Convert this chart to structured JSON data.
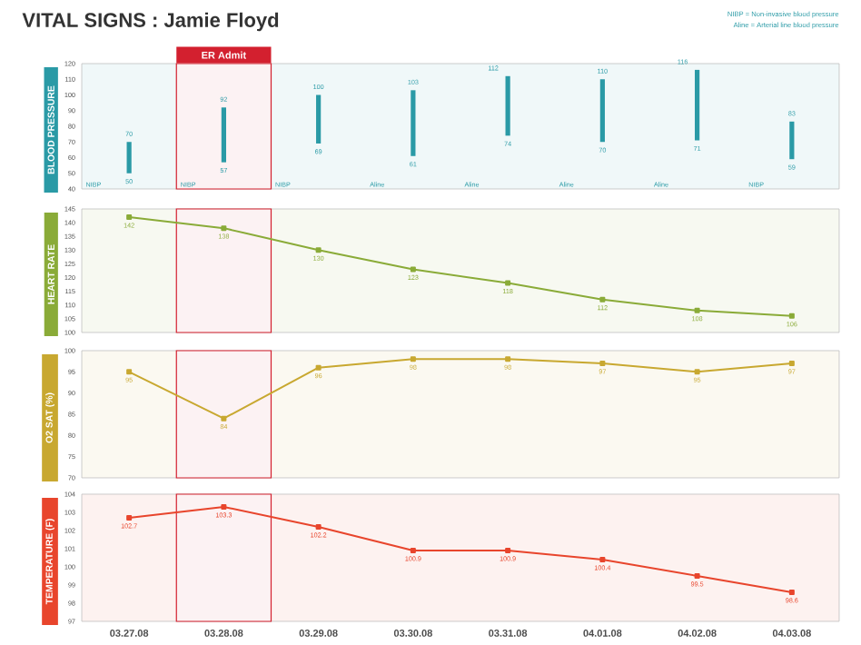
{
  "chart_data": [
    {
      "type": "bar",
      "title": "VITAL SIGNS : Jamie Floyd",
      "ylabel": "BLOOD PRESSURE",
      "categories": [
        "03.27.08",
        "03.28.08",
        "03.29.08",
        "03.30.08",
        "03.31.08",
        "04.01.08",
        "04.02.08",
        "04.03.08"
      ],
      "values": [
        20,
        35,
        31,
        42,
        38,
        40,
        45,
        24
      ],
      "base": [
        50,
        57,
        69,
        61,
        74,
        70,
        71,
        59
      ],
      "color": "#2a9aa6",
      "ylim": [
        40,
        120
      ],
      "yticks": [
        40,
        50,
        60,
        70,
        80,
        90,
        100,
        110,
        120
      ],
      "tick_labels": "y",
      "bands": [
        {
          "axis": "x",
          "from": "03.28.08",
          "to": "03.28.08",
          "label": "ER Admit",
          "color": "#d3202f"
        }
      ],
      "annotations": [
        "NIBP = Non-invasive blood pressure",
        "Aline = Arterial line blood pressure",
        {
          "text": "70",
          "x": "03.27.08",
          "y": 70
        },
        {
          "text": "50",
          "x": "03.27.08",
          "y": 50
        },
        {
          "text": "92",
          "x": "03.28.08",
          "y": 92
        },
        {
          "text": "57",
          "x": "03.28.08",
          "y": 57
        },
        {
          "text": "100",
          "x": "03.29.08",
          "y": 100
        },
        {
          "text": "69",
          "x": "03.29.08",
          "y": 69
        },
        {
          "text": "103",
          "x": "03.30.08",
          "y": 103
        },
        {
          "text": "61",
          "x": "03.30.08",
          "y": 61
        },
        {
          "text": "112",
          "x": "03.31.08",
          "y": 112
        },
        {
          "text": "74",
          "x": "03.31.08",
          "y": 74
        },
        {
          "text": "110",
          "x": "04.01.08",
          "y": 110
        },
        {
          "text": "70",
          "x": "04.01.08",
          "y": 70
        },
        {
          "text": "116",
          "x": "04.02.08",
          "y": 116
        },
        {
          "text": "71",
          "x": "04.02.08",
          "y": 71
        },
        {
          "text": "83",
          "x": "04.03.08",
          "y": 83
        },
        {
          "text": "59",
          "x": "04.03.08",
          "y": 59
        },
        "NIBP",
        "NIBP",
        "NIBP",
        "Aline",
        "Aline",
        "Aline",
        "Aline",
        "NIBP"
      ]
    },
    {
      "type": "line",
      "ylabel": "HEART RATE",
      "categories": [
        "03.27.08",
        "03.28.08",
        "03.29.08",
        "03.30.08",
        "03.31.08",
        "04.01.08",
        "04.02.08",
        "04.03.08"
      ],
      "values": [
        142,
        138,
        130,
        123,
        118,
        112,
        108,
        106
      ],
      "color": "#8aab38",
      "marker": "square",
      "data_labels": true,
      "ylim": [
        100,
        145
      ],
      "yticks": [
        100,
        105,
        110,
        115,
        120,
        125,
        130,
        135,
        140,
        145
      ],
      "tick_labels": "y",
      "bands": [
        {
          "axis": "x",
          "from": "03.28.08",
          "to": "03.28.08",
          "color": "#d3202f"
        }
      ]
    },
    {
      "type": "line",
      "ylabel": "O2 SAT (%)",
      "categories": [
        "03.27.08",
        "03.28.08",
        "03.29.08",
        "03.30.08",
        "03.31.08",
        "04.01.08",
        "04.02.08",
        "04.03.08"
      ],
      "values": [
        95,
        84,
        96,
        98,
        98,
        97,
        95,
        97
      ],
      "color": "#c8a830",
      "marker": "square",
      "data_labels": true,
      "ylim": [
        70,
        100
      ],
      "yticks": [
        70,
        75,
        80,
        85,
        90,
        95,
        100
      ],
      "tick_labels": "y",
      "bands": [
        {
          "axis": "x",
          "from": "03.28.08",
          "to": "03.28.08",
          "color": "#d3202f"
        }
      ]
    },
    {
      "type": "line",
      "ylabel": "TEMPERATURE (F)",
      "categories": [
        "03.27.08",
        "03.28.08",
        "03.29.08",
        "03.30.08",
        "03.31.08",
        "04.01.08",
        "04.02.08",
        "04.03.08"
      ],
      "values": [
        102.7,
        103.3,
        102.2,
        100.9,
        100.9,
        100.4,
        99.5,
        98.6
      ],
      "color": "#e8452c",
      "marker": "square",
      "data_labels": true,
      "ylim": [
        97,
        104
      ],
      "yticks": [
        97,
        98,
        99,
        100,
        101,
        102,
        103,
        104
      ],
      "bands": [
        {
          "axis": "x",
          "from": "03.28.08",
          "to": "03.28.08",
          "color": "#d3202f"
        }
      ]
    }
  ]
}
